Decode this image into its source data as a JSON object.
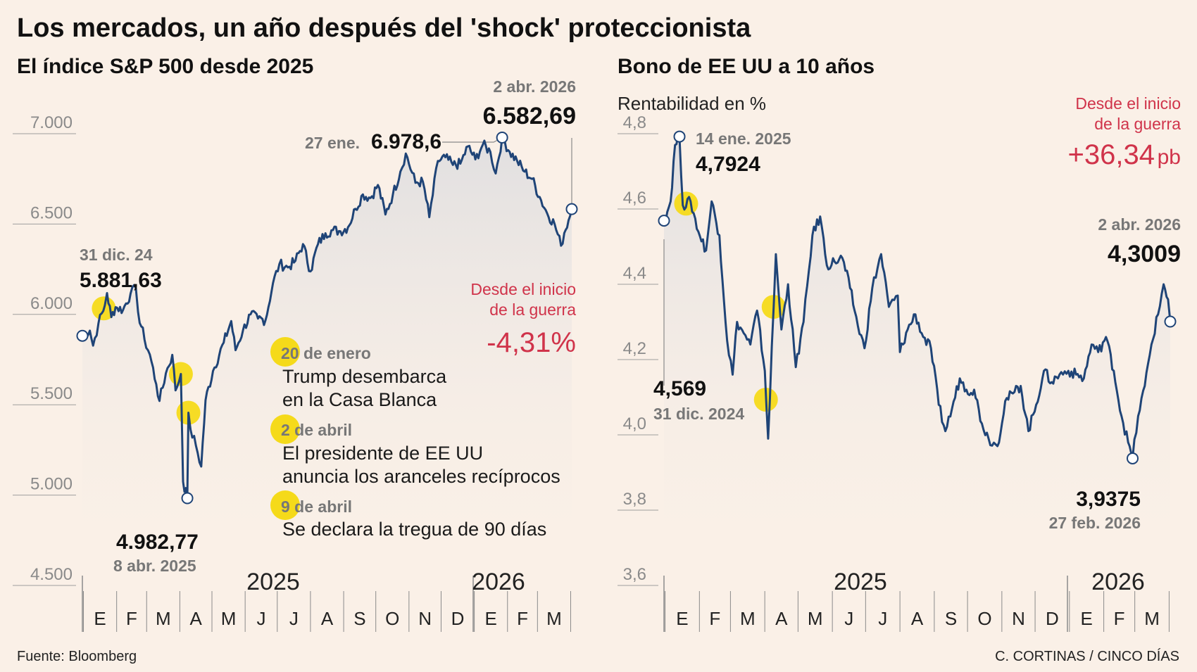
{
  "title": "Los mercados, un año después del 'shock' proteccionista",
  "source": "Fuente: Bloomberg",
  "credit": "C. CORTINAS / CINCO DÍAS",
  "colors": {
    "line": "#1f4477",
    "marker": "#f5da1a",
    "accent": "#d0334a",
    "background": "#faf0e7"
  },
  "events": [
    {
      "date": "20 de enero",
      "text": [
        "Trump desembarca",
        "en la Casa Blanca"
      ]
    },
    {
      "date": "2 de abril",
      "text": [
        "El presidente de EE UU",
        "anuncia los aranceles recíprocos"
      ]
    },
    {
      "date": "9 de abril",
      "text": [
        "Se declara la tregua de 90 días"
      ]
    }
  ],
  "sp500": {
    "subtitle": "El índice S&P 500 desde 2025",
    "start": {
      "date": "31 dic. 24",
      "value": "5.881,63"
    },
    "min": {
      "date": "8 abr. 2025",
      "value": "4.982,77"
    },
    "max": {
      "date": "27 ene.",
      "value": "6.978,6"
    },
    "end": {
      "date": "2 abr. 2026",
      "value": "6.582,69"
    },
    "war_label_1": "Desde el inicio",
    "war_label_2": "de la guerra",
    "war_change": "-4,31%"
  },
  "bond": {
    "subtitle": "Bono de EE UU a 10 años",
    "unit": "Rentabilidad en %",
    "start": {
      "date": "31 dic. 2024",
      "value": "4,569"
    },
    "max": {
      "date": "14 ene. 2025",
      "value": "4,7924"
    },
    "min": {
      "date": "27 feb. 2026",
      "value": "3,9375"
    },
    "end": {
      "date": "2 abr. 2026",
      "value": "4,3009"
    },
    "war_label_1": "Desde el inicio",
    "war_label_2": "de la guerra",
    "war_change": "+36,34",
    "war_unit": "pb"
  },
  "chart_data": [
    {
      "type": "line",
      "title": "El índice S&P 500 desde 2025",
      "ylim": [
        4500,
        7000
      ],
      "y_ticks": [
        "4.500",
        "5.000",
        "5.500",
        "6.000",
        "6.500",
        "7.000"
      ],
      "x_years": [
        "2025",
        "2026"
      ],
      "x_months": [
        "E",
        "F",
        "M",
        "A",
        "M",
        "J",
        "J",
        "A",
        "S",
        "O",
        "N",
        "D",
        "E",
        "F",
        "M"
      ],
      "x_range": [
        "2024-12-31",
        "2026-04-02"
      ],
      "series": [
        {
          "points": [
            [
              "2024-12-31",
              5881.6
            ],
            [
              "2025-01-07",
              5910
            ],
            [
              "2025-01-10",
              5827
            ],
            [
              "2025-01-15",
              5950
            ],
            [
              "2025-01-21",
              6050
            ],
            [
              "2025-01-23",
              6118
            ],
            [
              "2025-01-27",
              5985
            ],
            [
              "2025-01-31",
              6040
            ],
            [
              "2025-02-07",
              6025
            ],
            [
              "2025-02-14",
              6115
            ],
            [
              "2025-02-19",
              6144
            ],
            [
              "2025-02-21",
              6013
            ],
            [
              "2025-02-27",
              5861
            ],
            [
              "2025-03-04",
              5778
            ],
            [
              "2025-03-10",
              5614
            ],
            [
              "2025-03-13",
              5521
            ],
            [
              "2025-03-19",
              5675
            ],
            [
              "2025-03-25",
              5776
            ],
            [
              "2025-03-28",
              5580
            ],
            [
              "2025-04-02",
              5670
            ],
            [
              "2025-04-04",
              5074
            ],
            [
              "2025-04-08",
              4982.8
            ],
            [
              "2025-04-09",
              5456
            ],
            [
              "2025-04-11",
              5363
            ],
            [
              "2025-04-16",
              5275
            ],
            [
              "2025-04-21",
              5158
            ],
            [
              "2025-04-25",
              5525
            ],
            [
              "2025-05-02",
              5687
            ],
            [
              "2025-05-12",
              5844
            ],
            [
              "2025-05-19",
              5963
            ],
            [
              "2025-05-23",
              5802
            ],
            [
              "2025-05-30",
              5912
            ],
            [
              "2025-06-06",
              6000
            ],
            [
              "2025-06-13",
              5977
            ],
            [
              "2025-06-20",
              5968
            ],
            [
              "2025-06-27",
              6173
            ],
            [
              "2025-07-03",
              6279
            ],
            [
              "2025-07-11",
              6260
            ],
            [
              "2025-07-18",
              6297
            ],
            [
              "2025-07-25",
              6389
            ],
            [
              "2025-08-01",
              6238
            ],
            [
              "2025-08-08",
              6389
            ],
            [
              "2025-08-15",
              6449
            ],
            [
              "2025-08-22",
              6467
            ],
            [
              "2025-08-29",
              6460
            ],
            [
              "2025-09-05",
              6482
            ],
            [
              "2025-09-12",
              6584
            ],
            [
              "2025-09-19",
              6664
            ],
            [
              "2025-09-26",
              6644
            ],
            [
              "2025-10-03",
              6716
            ],
            [
              "2025-10-10",
              6553
            ],
            [
              "2025-10-17",
              6664
            ],
            [
              "2025-10-24",
              6791
            ],
            [
              "2025-10-29",
              6890
            ],
            [
              "2025-11-07",
              6728
            ],
            [
              "2025-11-14",
              6734
            ],
            [
              "2025-11-20",
              6538
            ],
            [
              "2025-11-28",
              6849
            ],
            [
              "2025-12-05",
              6870
            ],
            [
              "2025-12-12",
              6827
            ],
            [
              "2025-12-19",
              6834
            ],
            [
              "2025-12-26",
              6930
            ],
            [
              "2026-01-02",
              6858
            ],
            [
              "2026-01-09",
              6940
            ],
            [
              "2026-01-16",
              6900
            ],
            [
              "2026-01-21",
              6780
            ],
            [
              "2026-01-27",
              6978.6
            ],
            [
              "2026-02-03",
              6900
            ],
            [
              "2026-02-10",
              6850
            ],
            [
              "2026-02-17",
              6790
            ],
            [
              "2026-02-24",
              6750
            ],
            [
              "2026-03-03",
              6650
            ],
            [
              "2026-03-10",
              6560
            ],
            [
              "2026-03-17",
              6500
            ],
            [
              "2026-03-23",
              6380
            ],
            [
              "2026-03-26",
              6450
            ],
            [
              "2026-03-30",
              6520
            ],
            [
              "2026-04-02",
              6582.69
            ]
          ]
        }
      ]
    },
    {
      "type": "line",
      "title": "Bono de EE UU a 10 años",
      "ylabel": "Rentabilidad en %",
      "ylim": [
        3.6,
        4.8
      ],
      "y_ticks": [
        "3,6",
        "3,8",
        "4,0",
        "4,2",
        "4,4",
        "4,6",
        "4,8"
      ],
      "x_years": [
        "2025",
        "2026"
      ],
      "x_months": [
        "E",
        "F",
        "M",
        "A",
        "M",
        "J",
        "J",
        "A",
        "S",
        "O",
        "N",
        "D",
        "E",
        "F",
        "M"
      ],
      "x_range": [
        "2024-12-31",
        "2026-04-02"
      ],
      "series": [
        {
          "points": [
            [
              "2024-12-31",
              4.569
            ],
            [
              "2025-01-06",
              4.62
            ],
            [
              "2025-01-10",
              4.77
            ],
            [
              "2025-01-14",
              4.7924
            ],
            [
              "2025-01-17",
              4.61
            ],
            [
              "2025-01-24",
              4.62
            ],
            [
              "2025-01-31",
              4.54
            ],
            [
              "2025-02-07",
              4.49
            ],
            [
              "2025-02-12",
              4.62
            ],
            [
              "2025-02-19",
              4.53
            ],
            [
              "2025-02-26",
              4.25
            ],
            [
              "2025-03-03",
              4.16
            ],
            [
              "2025-03-07",
              4.3
            ],
            [
              "2025-03-13",
              4.27
            ],
            [
              "2025-03-19",
              4.24
            ],
            [
              "2025-03-25",
              4.33
            ],
            [
              "2025-04-01",
              4.17
            ],
            [
              "2025-04-04",
              3.99
            ],
            [
              "2025-04-09",
              4.34
            ],
            [
              "2025-04-11",
              4.48
            ],
            [
              "2025-04-16",
              4.28
            ],
            [
              "2025-04-22",
              4.4
            ],
            [
              "2025-04-29",
              4.18
            ],
            [
              "2025-05-06",
              4.3
            ],
            [
              "2025-05-14",
              4.53
            ],
            [
              "2025-05-21",
              4.58
            ],
            [
              "2025-05-27",
              4.45
            ],
            [
              "2025-06-03",
              4.46
            ],
            [
              "2025-06-10",
              4.47
            ],
            [
              "2025-06-17",
              4.39
            ],
            [
              "2025-06-24",
              4.29
            ],
            [
              "2025-06-30",
              4.23
            ],
            [
              "2025-07-07",
              4.39
            ],
            [
              "2025-07-15",
              4.48
            ],
            [
              "2025-07-22",
              4.34
            ],
            [
              "2025-07-30",
              4.37
            ],
            [
              "2025-08-01",
              4.22
            ],
            [
              "2025-08-08",
              4.28
            ],
            [
              "2025-08-15",
              4.32
            ],
            [
              "2025-08-22",
              4.26
            ],
            [
              "2025-08-29",
              4.23
            ],
            [
              "2025-09-05",
              4.08
            ],
            [
              "2025-09-11",
              4.01
            ],
            [
              "2025-09-17",
              4.07
            ],
            [
              "2025-09-24",
              4.15
            ],
            [
              "2025-09-30",
              4.12
            ],
            [
              "2025-10-07",
              4.12
            ],
            [
              "2025-10-14",
              4.03
            ],
            [
              "2025-10-20",
              3.99
            ],
            [
              "2025-10-28",
              3.97
            ],
            [
              "2025-11-04",
              4.09
            ],
            [
              "2025-11-11",
              4.11
            ],
            [
              "2025-11-18",
              4.13
            ],
            [
              "2025-11-25",
              4.01
            ],
            [
              "2025-12-02",
              4.08
            ],
            [
              "2025-12-09",
              4.17
            ],
            [
              "2025-12-16",
              4.14
            ],
            [
              "2025-12-23",
              4.16
            ],
            [
              "2025-12-31",
              4.17
            ],
            [
              "2026-01-07",
              4.16
            ],
            [
              "2026-01-14",
              4.15
            ],
            [
              "2026-01-21",
              4.24
            ],
            [
              "2026-01-27",
              4.22
            ],
            [
              "2026-02-03",
              4.26
            ],
            [
              "2026-02-10",
              4.17
            ],
            [
              "2026-02-17",
              4.05
            ],
            [
              "2026-02-23",
              3.98
            ],
            [
              "2026-02-27",
              3.9375
            ],
            [
              "2026-03-04",
              4.05
            ],
            [
              "2026-03-10",
              4.13
            ],
            [
              "2026-03-16",
              4.24
            ],
            [
              "2026-03-22",
              4.32
            ],
            [
              "2026-03-27",
              4.4
            ],
            [
              "2026-03-31",
              4.36
            ],
            [
              "2026-04-02",
              4.3009
            ]
          ]
        }
      ]
    }
  ]
}
